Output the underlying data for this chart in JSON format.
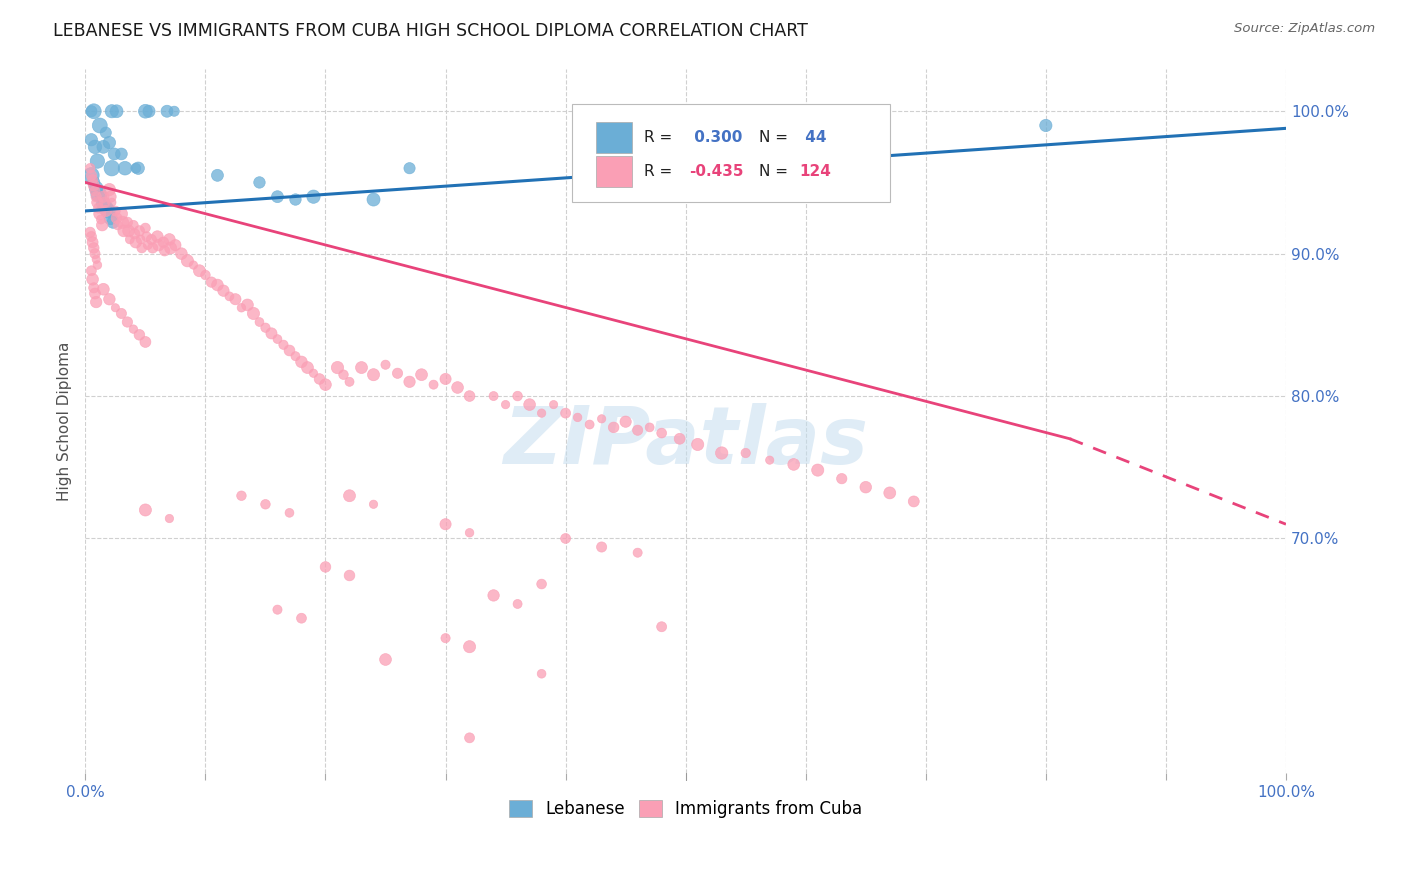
{
  "title": "LEBANESE VS IMMIGRANTS FROM CUBA HIGH SCHOOL DIPLOMA CORRELATION CHART",
  "source": "Source: ZipAtlas.com",
  "ylabel": "High School Diploma",
  "blue_color": "#6baed6",
  "pink_color": "#fa9fb5",
  "trend_blue_color": "#2171b5",
  "trend_pink_color": "#e8437a",
  "watermark": "ZIPatlas",
  "blue_points": [
    [
      0.005,
      1.0
    ],
    [
      0.007,
      1.0
    ],
    [
      0.022,
      1.0
    ],
    [
      0.026,
      1.0
    ],
    [
      0.05,
      1.0
    ],
    [
      0.053,
      1.0
    ],
    [
      0.068,
      1.0
    ],
    [
      0.074,
      1.0
    ],
    [
      0.005,
      0.98
    ],
    [
      0.008,
      0.975
    ],
    [
      0.01,
      0.965
    ],
    [
      0.012,
      0.99
    ],
    [
      0.015,
      0.975
    ],
    [
      0.017,
      0.985
    ],
    [
      0.02,
      0.978
    ],
    [
      0.022,
      0.96
    ],
    [
      0.024,
      0.97
    ],
    [
      0.03,
      0.97
    ],
    [
      0.033,
      0.96
    ],
    [
      0.042,
      0.96
    ],
    [
      0.044,
      0.96
    ],
    [
      0.005,
      0.955
    ],
    [
      0.007,
      0.95
    ],
    [
      0.009,
      0.946
    ],
    [
      0.011,
      0.942
    ],
    [
      0.013,
      0.94
    ],
    [
      0.015,
      0.935
    ],
    [
      0.017,
      0.932
    ],
    [
      0.019,
      0.93
    ],
    [
      0.021,
      0.925
    ],
    [
      0.023,
      0.922
    ],
    [
      0.11,
      0.955
    ],
    [
      0.145,
      0.95
    ],
    [
      0.16,
      0.94
    ],
    [
      0.175,
      0.938
    ],
    [
      0.19,
      0.94
    ],
    [
      0.24,
      0.938
    ],
    [
      0.27,
      0.96
    ],
    [
      0.8,
      0.99
    ]
  ],
  "pink_points": [
    [
      0.004,
      0.96
    ],
    [
      0.005,
      0.955
    ],
    [
      0.006,
      0.952
    ],
    [
      0.007,
      0.948
    ],
    [
      0.008,
      0.944
    ],
    [
      0.009,
      0.94
    ],
    [
      0.01,
      0.936
    ],
    [
      0.011,
      0.932
    ],
    [
      0.012,
      0.928
    ],
    [
      0.013,
      0.924
    ],
    [
      0.014,
      0.92
    ],
    [
      0.004,
      0.915
    ],
    [
      0.005,
      0.912
    ],
    [
      0.006,
      0.908
    ],
    [
      0.007,
      0.904
    ],
    [
      0.008,
      0.9
    ],
    [
      0.009,
      0.896
    ],
    [
      0.01,
      0.892
    ],
    [
      0.015,
      0.94
    ],
    [
      0.016,
      0.936
    ],
    [
      0.017,
      0.93
    ],
    [
      0.02,
      0.945
    ],
    [
      0.021,
      0.94
    ],
    [
      0.022,
      0.936
    ],
    [
      0.025,
      0.93
    ],
    [
      0.026,
      0.925
    ],
    [
      0.027,
      0.92
    ],
    [
      0.03,
      0.928
    ],
    [
      0.031,
      0.922
    ],
    [
      0.032,
      0.916
    ],
    [
      0.035,
      0.922
    ],
    [
      0.036,
      0.916
    ],
    [
      0.037,
      0.91
    ],
    [
      0.04,
      0.92
    ],
    [
      0.041,
      0.914
    ],
    [
      0.042,
      0.908
    ],
    [
      0.045,
      0.916
    ],
    [
      0.046,
      0.91
    ],
    [
      0.047,
      0.904
    ],
    [
      0.05,
      0.918
    ],
    [
      0.051,
      0.912
    ],
    [
      0.052,
      0.906
    ],
    [
      0.055,
      0.91
    ],
    [
      0.056,
      0.904
    ],
    [
      0.06,
      0.912
    ],
    [
      0.061,
      0.906
    ],
    [
      0.065,
      0.908
    ],
    [
      0.066,
      0.902
    ],
    [
      0.07,
      0.91
    ],
    [
      0.071,
      0.904
    ],
    [
      0.075,
      0.906
    ],
    [
      0.08,
      0.9
    ],
    [
      0.085,
      0.895
    ],
    [
      0.09,
      0.892
    ],
    [
      0.095,
      0.888
    ],
    [
      0.1,
      0.885
    ],
    [
      0.105,
      0.88
    ],
    [
      0.11,
      0.878
    ],
    [
      0.115,
      0.874
    ],
    [
      0.12,
      0.87
    ],
    [
      0.125,
      0.868
    ],
    [
      0.13,
      0.862
    ],
    [
      0.005,
      0.888
    ],
    [
      0.006,
      0.882
    ],
    [
      0.007,
      0.876
    ],
    [
      0.008,
      0.872
    ],
    [
      0.009,
      0.866
    ],
    [
      0.015,
      0.875
    ],
    [
      0.02,
      0.868
    ],
    [
      0.025,
      0.862
    ],
    [
      0.03,
      0.858
    ],
    [
      0.035,
      0.852
    ],
    [
      0.04,
      0.847
    ],
    [
      0.045,
      0.843
    ],
    [
      0.05,
      0.838
    ],
    [
      0.135,
      0.864
    ],
    [
      0.14,
      0.858
    ],
    [
      0.145,
      0.852
    ],
    [
      0.15,
      0.848
    ],
    [
      0.155,
      0.844
    ],
    [
      0.16,
      0.84
    ],
    [
      0.165,
      0.836
    ],
    [
      0.17,
      0.832
    ],
    [
      0.175,
      0.828
    ],
    [
      0.18,
      0.824
    ],
    [
      0.185,
      0.82
    ],
    [
      0.19,
      0.816
    ],
    [
      0.195,
      0.812
    ],
    [
      0.2,
      0.808
    ],
    [
      0.21,
      0.82
    ],
    [
      0.215,
      0.815
    ],
    [
      0.22,
      0.81
    ],
    [
      0.23,
      0.82
    ],
    [
      0.24,
      0.815
    ],
    [
      0.25,
      0.822
    ],
    [
      0.26,
      0.816
    ],
    [
      0.27,
      0.81
    ],
    [
      0.28,
      0.815
    ],
    [
      0.29,
      0.808
    ],
    [
      0.3,
      0.812
    ],
    [
      0.31,
      0.806
    ],
    [
      0.32,
      0.8
    ],
    [
      0.34,
      0.8
    ],
    [
      0.35,
      0.794
    ],
    [
      0.36,
      0.8
    ],
    [
      0.37,
      0.794
    ],
    [
      0.38,
      0.788
    ],
    [
      0.39,
      0.794
    ],
    [
      0.4,
      0.788
    ],
    [
      0.41,
      0.785
    ],
    [
      0.42,
      0.78
    ],
    [
      0.43,
      0.784
    ],
    [
      0.44,
      0.778
    ],
    [
      0.45,
      0.782
    ],
    [
      0.46,
      0.776
    ],
    [
      0.47,
      0.778
    ],
    [
      0.48,
      0.774
    ],
    [
      0.495,
      0.77
    ],
    [
      0.51,
      0.766
    ],
    [
      0.53,
      0.76
    ],
    [
      0.55,
      0.76
    ],
    [
      0.57,
      0.755
    ],
    [
      0.59,
      0.752
    ],
    [
      0.61,
      0.748
    ],
    [
      0.63,
      0.742
    ],
    [
      0.65,
      0.736
    ],
    [
      0.67,
      0.732
    ],
    [
      0.69,
      0.726
    ],
    [
      0.22,
      0.73
    ],
    [
      0.24,
      0.724
    ],
    [
      0.13,
      0.73
    ],
    [
      0.15,
      0.724
    ],
    [
      0.17,
      0.718
    ],
    [
      0.05,
      0.72
    ],
    [
      0.07,
      0.714
    ],
    [
      0.3,
      0.71
    ],
    [
      0.32,
      0.704
    ],
    [
      0.4,
      0.7
    ],
    [
      0.43,
      0.694
    ],
    [
      0.46,
      0.69
    ],
    [
      0.2,
      0.68
    ],
    [
      0.22,
      0.674
    ],
    [
      0.38,
      0.668
    ],
    [
      0.34,
      0.66
    ],
    [
      0.36,
      0.654
    ],
    [
      0.16,
      0.65
    ],
    [
      0.18,
      0.644
    ],
    [
      0.48,
      0.638
    ],
    [
      0.3,
      0.63
    ],
    [
      0.32,
      0.624
    ],
    [
      0.25,
      0.615
    ],
    [
      0.38,
      0.605
    ],
    [
      0.32,
      0.56
    ]
  ],
  "blue_trend": [
    0.0,
    1.0,
    0.93,
    0.988
  ],
  "pink_trend_solid": [
    0.0,
    0.82,
    0.95,
    0.77
  ],
  "pink_trend_dashed": [
    0.82,
    1.0,
    0.77,
    0.71
  ],
  "xmin": 0.0,
  "xmax": 1.0,
  "ymin": 0.535,
  "ymax": 1.03,
  "yticks": [
    0.7,
    0.8,
    0.9,
    1.0
  ],
  "ytick_labels": [
    "70.0%",
    "80.0%",
    "90.0%",
    "100.0%"
  ],
  "background_color": "#ffffff",
  "grid_color": "#d0d0d0",
  "axis_label_color": "#4472c4"
}
